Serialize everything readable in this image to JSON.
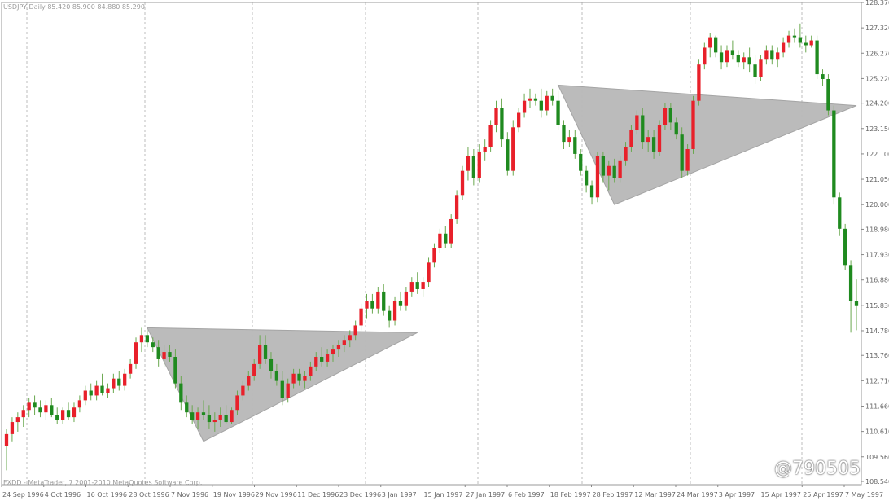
{
  "header": {
    "symbol_line": "USDJPY,Daily",
    "ohlc_line": "85.420 85.900 84.880 85.290"
  },
  "footer": {
    "copyright": "FXDD - MetaTrader, 7 2001-2010 MetaQuotes Software Corp."
  },
  "watermark": "@790505",
  "colors": {
    "bull": "#e8202a",
    "bear": "#1f8a1f",
    "wick": "#6aa84f",
    "triangle_fill": "#b8b8b8",
    "grid": "#bdbdbd",
    "axis_text": "#666666"
  },
  "chart_data": {
    "type": "candlestick",
    "title": "",
    "ylim": [
      108.54,
      128.37
    ],
    "y_ticks": [
      "128.370",
      "127.320",
      "126.270",
      "125.220",
      "124.200",
      "123.150",
      "122.100",
      "121.050",
      "120.000",
      "118.980",
      "117.930",
      "116.880",
      "115.830",
      "114.780",
      "113.760",
      "112.710",
      "111.660",
      "110.610",
      "109.560",
      "108.540"
    ],
    "x_ticks": [
      "24 Sep 1996",
      "4 Oct 1996",
      "16 Oct 1996",
      "28 Oct 1996",
      "7 Nov 1996",
      "19 Nov 1996",
      "29 Nov 1996",
      "11 Dec 1996",
      "23 Dec 1996",
      "3 Jan 1997",
      "15 Jan 1997",
      "27 Jan 1997",
      "6 Feb 1997",
      "18 Feb 1997",
      "28 Feb 1997",
      "12 Mar 1997",
      "24 Mar 1997",
      "3 Apr 1997",
      "15 Apr 1997",
      "25 Apr 1997",
      "7 May 1997"
    ],
    "grid_tick_indices": [
      3,
      6,
      9,
      12,
      15,
      17
    ],
    "candles": [
      {
        "o": 110.0,
        "h": 110.7,
        "l": 109.0,
        "c": 110.5
      },
      {
        "o": 110.5,
        "h": 111.2,
        "l": 110.2,
        "c": 111.0
      },
      {
        "o": 111.0,
        "h": 111.4,
        "l": 110.6,
        "c": 111.2
      },
      {
        "o": 111.2,
        "h": 111.7,
        "l": 110.8,
        "c": 111.5
      },
      {
        "o": 111.5,
        "h": 112.0,
        "l": 111.2,
        "c": 111.8
      },
      {
        "o": 111.8,
        "h": 112.1,
        "l": 111.3,
        "c": 111.6
      },
      {
        "o": 111.6,
        "h": 111.9,
        "l": 111.2,
        "c": 111.4
      },
      {
        "o": 111.4,
        "h": 111.9,
        "l": 111.1,
        "c": 111.7
      },
      {
        "o": 111.7,
        "h": 112.0,
        "l": 111.2,
        "c": 111.3
      },
      {
        "o": 111.3,
        "h": 111.6,
        "l": 110.9,
        "c": 111.1
      },
      {
        "o": 111.1,
        "h": 111.6,
        "l": 110.9,
        "c": 111.5
      },
      {
        "o": 111.5,
        "h": 111.8,
        "l": 111.1,
        "c": 111.2
      },
      {
        "o": 111.2,
        "h": 111.8,
        "l": 111.0,
        "c": 111.6
      },
      {
        "o": 111.6,
        "h": 112.1,
        "l": 111.4,
        "c": 111.9
      },
      {
        "o": 111.9,
        "h": 112.5,
        "l": 111.7,
        "c": 112.3
      },
      {
        "o": 112.3,
        "h": 112.6,
        "l": 111.9,
        "c": 112.1
      },
      {
        "o": 112.1,
        "h": 112.7,
        "l": 111.9,
        "c": 112.5
      },
      {
        "o": 112.5,
        "h": 113.0,
        "l": 112.1,
        "c": 112.2
      },
      {
        "o": 112.2,
        "h": 112.6,
        "l": 112.0,
        "c": 112.4
      },
      {
        "o": 112.4,
        "h": 113.0,
        "l": 112.2,
        "c": 112.8
      },
      {
        "o": 112.8,
        "h": 113.1,
        "l": 112.3,
        "c": 112.5
      },
      {
        "o": 112.5,
        "h": 113.2,
        "l": 112.3,
        "c": 113.0
      },
      {
        "o": 113.0,
        "h": 113.6,
        "l": 112.8,
        "c": 113.4
      },
      {
        "o": 113.4,
        "h": 114.5,
        "l": 113.2,
        "c": 114.3
      },
      {
        "o": 114.3,
        "h": 114.9,
        "l": 113.9,
        "c": 114.6
      },
      {
        "o": 114.6,
        "h": 114.8,
        "l": 114.1,
        "c": 114.3
      },
      {
        "o": 114.3,
        "h": 114.5,
        "l": 113.9,
        "c": 114.1
      },
      {
        "o": 114.1,
        "h": 114.4,
        "l": 113.3,
        "c": 113.6
      },
      {
        "o": 113.6,
        "h": 114.2,
        "l": 113.3,
        "c": 113.9
      },
      {
        "o": 113.9,
        "h": 114.2,
        "l": 113.5,
        "c": 113.7
      },
      {
        "o": 113.7,
        "h": 114.0,
        "l": 112.4,
        "c": 112.6
      },
      {
        "o": 112.6,
        "h": 112.9,
        "l": 111.5,
        "c": 111.8
      },
      {
        "o": 111.8,
        "h": 112.1,
        "l": 111.2,
        "c": 111.4
      },
      {
        "o": 111.4,
        "h": 111.7,
        "l": 110.9,
        "c": 111.1
      },
      {
        "o": 111.1,
        "h": 111.6,
        "l": 110.7,
        "c": 111.4
      },
      {
        "o": 111.4,
        "h": 111.9,
        "l": 111.1,
        "c": 111.3
      },
      {
        "o": 111.3,
        "h": 111.7,
        "l": 110.7,
        "c": 111.0
      },
      {
        "o": 111.0,
        "h": 111.4,
        "l": 110.6,
        "c": 111.1
      },
      {
        "o": 111.1,
        "h": 111.6,
        "l": 110.8,
        "c": 111.3
      },
      {
        "o": 111.3,
        "h": 111.7,
        "l": 110.9,
        "c": 111.0
      },
      {
        "o": 111.0,
        "h": 111.6,
        "l": 110.9,
        "c": 111.5
      },
      {
        "o": 111.5,
        "h": 112.3,
        "l": 111.3,
        "c": 112.1
      },
      {
        "o": 112.1,
        "h": 112.7,
        "l": 111.9,
        "c": 112.5
      },
      {
        "o": 112.5,
        "h": 113.1,
        "l": 112.3,
        "c": 112.9
      },
      {
        "o": 112.9,
        "h": 113.6,
        "l": 112.7,
        "c": 113.4
      },
      {
        "o": 113.4,
        "h": 114.6,
        "l": 113.2,
        "c": 114.2
      },
      {
        "o": 114.2,
        "h": 114.6,
        "l": 113.4,
        "c": 113.6
      },
      {
        "o": 113.6,
        "h": 113.9,
        "l": 112.8,
        "c": 113.1
      },
      {
        "o": 113.1,
        "h": 113.4,
        "l": 112.5,
        "c": 112.7
      },
      {
        "o": 112.7,
        "h": 113.1,
        "l": 111.7,
        "c": 112.0
      },
      {
        "o": 112.0,
        "h": 112.8,
        "l": 111.8,
        "c": 112.6
      },
      {
        "o": 112.6,
        "h": 113.2,
        "l": 112.4,
        "c": 113.0
      },
      {
        "o": 113.0,
        "h": 113.2,
        "l": 112.5,
        "c": 112.7
      },
      {
        "o": 112.7,
        "h": 113.1,
        "l": 112.4,
        "c": 112.9
      },
      {
        "o": 112.9,
        "h": 113.5,
        "l": 112.7,
        "c": 113.3
      },
      {
        "o": 113.3,
        "h": 113.9,
        "l": 113.1,
        "c": 113.7
      },
      {
        "o": 113.7,
        "h": 114.1,
        "l": 113.3,
        "c": 113.5
      },
      {
        "o": 113.5,
        "h": 114.0,
        "l": 113.3,
        "c": 113.8
      },
      {
        "o": 113.8,
        "h": 114.2,
        "l": 113.5,
        "c": 114.0
      },
      {
        "o": 114.0,
        "h": 114.4,
        "l": 113.7,
        "c": 114.2
      },
      {
        "o": 114.2,
        "h": 114.6,
        "l": 113.9,
        "c": 114.4
      },
      {
        "o": 114.4,
        "h": 114.8,
        "l": 114.1,
        "c": 114.6
      },
      {
        "o": 114.6,
        "h": 115.2,
        "l": 114.4,
        "c": 115.0
      },
      {
        "o": 115.0,
        "h": 115.9,
        "l": 114.8,
        "c": 115.7
      },
      {
        "o": 115.7,
        "h": 116.3,
        "l": 115.3,
        "c": 116.0
      },
      {
        "o": 116.0,
        "h": 116.3,
        "l": 115.5,
        "c": 115.7
      },
      {
        "o": 115.7,
        "h": 116.6,
        "l": 115.5,
        "c": 116.4
      },
      {
        "o": 116.4,
        "h": 116.7,
        "l": 115.4,
        "c": 115.6
      },
      {
        "o": 115.6,
        "h": 115.8,
        "l": 114.9,
        "c": 115.2
      },
      {
        "o": 115.2,
        "h": 116.2,
        "l": 115.0,
        "c": 116.0
      },
      {
        "o": 116.0,
        "h": 116.4,
        "l": 115.6,
        "c": 115.8
      },
      {
        "o": 115.8,
        "h": 116.6,
        "l": 115.6,
        "c": 116.4
      },
      {
        "o": 116.4,
        "h": 117.0,
        "l": 116.2,
        "c": 116.8
      },
      {
        "o": 116.8,
        "h": 117.2,
        "l": 116.3,
        "c": 116.5
      },
      {
        "o": 116.5,
        "h": 117.0,
        "l": 116.2,
        "c": 116.8
      },
      {
        "o": 116.8,
        "h": 117.8,
        "l": 116.6,
        "c": 117.6
      },
      {
        "o": 117.6,
        "h": 118.4,
        "l": 117.4,
        "c": 118.2
      },
      {
        "o": 118.2,
        "h": 119.0,
        "l": 118.0,
        "c": 118.8
      },
      {
        "o": 118.8,
        "h": 119.1,
        "l": 118.2,
        "c": 118.4
      },
      {
        "o": 118.4,
        "h": 119.6,
        "l": 118.2,
        "c": 119.4
      },
      {
        "o": 119.4,
        "h": 120.6,
        "l": 119.2,
        "c": 120.4
      },
      {
        "o": 120.4,
        "h": 121.6,
        "l": 120.2,
        "c": 121.4
      },
      {
        "o": 121.4,
        "h": 122.4,
        "l": 121.0,
        "c": 122.0
      },
      {
        "o": 122.0,
        "h": 122.3,
        "l": 120.8,
        "c": 121.1
      },
      {
        "o": 121.1,
        "h": 122.5,
        "l": 120.9,
        "c": 122.2
      },
      {
        "o": 122.2,
        "h": 122.7,
        "l": 121.8,
        "c": 122.4
      },
      {
        "o": 122.4,
        "h": 123.5,
        "l": 122.2,
        "c": 123.3
      },
      {
        "o": 123.3,
        "h": 124.3,
        "l": 123.0,
        "c": 124.0
      },
      {
        "o": 124.0,
        "h": 124.4,
        "l": 122.4,
        "c": 122.7
      },
      {
        "o": 122.7,
        "h": 123.0,
        "l": 121.2,
        "c": 121.4
      },
      {
        "o": 121.4,
        "h": 123.5,
        "l": 121.2,
        "c": 123.2
      },
      {
        "o": 123.2,
        "h": 124.0,
        "l": 123.0,
        "c": 123.8
      },
      {
        "o": 123.8,
        "h": 124.6,
        "l": 123.6,
        "c": 124.3
      },
      {
        "o": 124.3,
        "h": 124.8,
        "l": 124.0,
        "c": 124.4
      },
      {
        "o": 124.4,
        "h": 124.6,
        "l": 124.1,
        "c": 124.3
      },
      {
        "o": 124.3,
        "h": 124.8,
        "l": 123.6,
        "c": 123.9
      },
      {
        "o": 123.9,
        "h": 124.7,
        "l": 123.7,
        "c": 124.5
      },
      {
        "o": 124.5,
        "h": 124.8,
        "l": 124.1,
        "c": 124.3
      },
      {
        "o": 124.3,
        "h": 124.7,
        "l": 123.1,
        "c": 123.3
      },
      {
        "o": 123.3,
        "h": 123.5,
        "l": 122.3,
        "c": 122.6
      },
      {
        "o": 122.6,
        "h": 123.1,
        "l": 122.4,
        "c": 122.8
      },
      {
        "o": 122.8,
        "h": 123.1,
        "l": 121.9,
        "c": 122.1
      },
      {
        "o": 122.1,
        "h": 122.3,
        "l": 121.2,
        "c": 121.4
      },
      {
        "o": 121.4,
        "h": 121.6,
        "l": 120.5,
        "c": 120.8
      },
      {
        "o": 120.8,
        "h": 121.0,
        "l": 120.0,
        "c": 120.3
      },
      {
        "o": 120.3,
        "h": 122.2,
        "l": 120.1,
        "c": 122.0
      },
      {
        "o": 122.0,
        "h": 122.2,
        "l": 120.9,
        "c": 121.2
      },
      {
        "o": 121.2,
        "h": 121.8,
        "l": 120.6,
        "c": 121.6
      },
      {
        "o": 121.6,
        "h": 121.9,
        "l": 120.9,
        "c": 121.1
      },
      {
        "o": 121.1,
        "h": 122.0,
        "l": 120.9,
        "c": 121.8
      },
      {
        "o": 121.8,
        "h": 122.6,
        "l": 121.6,
        "c": 122.4
      },
      {
        "o": 122.4,
        "h": 123.3,
        "l": 122.2,
        "c": 123.1
      },
      {
        "o": 123.1,
        "h": 123.9,
        "l": 122.9,
        "c": 123.7
      },
      {
        "o": 123.7,
        "h": 124.0,
        "l": 122.3,
        "c": 122.6
      },
      {
        "o": 122.6,
        "h": 123.1,
        "l": 122.2,
        "c": 122.8
      },
      {
        "o": 122.8,
        "h": 123.1,
        "l": 121.9,
        "c": 122.2
      },
      {
        "o": 122.2,
        "h": 123.5,
        "l": 122.0,
        "c": 123.3
      },
      {
        "o": 123.3,
        "h": 124.2,
        "l": 123.1,
        "c": 124.0
      },
      {
        "o": 124.0,
        "h": 124.2,
        "l": 123.1,
        "c": 123.4
      },
      {
        "o": 123.4,
        "h": 123.6,
        "l": 122.7,
        "c": 122.9
      },
      {
        "o": 122.9,
        "h": 123.2,
        "l": 121.1,
        "c": 121.4
      },
      {
        "o": 121.4,
        "h": 122.5,
        "l": 121.2,
        "c": 122.3
      },
      {
        "o": 122.3,
        "h": 124.5,
        "l": 122.1,
        "c": 124.3
      },
      {
        "o": 124.3,
        "h": 126.0,
        "l": 124.1,
        "c": 125.8
      },
      {
        "o": 125.8,
        "h": 126.7,
        "l": 125.6,
        "c": 126.5
      },
      {
        "o": 126.5,
        "h": 127.1,
        "l": 126.1,
        "c": 126.9
      },
      {
        "o": 126.9,
        "h": 127.0,
        "l": 126.1,
        "c": 126.3
      },
      {
        "o": 126.3,
        "h": 126.6,
        "l": 125.6,
        "c": 125.9
      },
      {
        "o": 125.9,
        "h": 126.6,
        "l": 125.7,
        "c": 126.4
      },
      {
        "o": 126.4,
        "h": 126.8,
        "l": 126.0,
        "c": 126.2
      },
      {
        "o": 126.2,
        "h": 126.4,
        "l": 125.7,
        "c": 125.9
      },
      {
        "o": 125.9,
        "h": 126.3,
        "l": 125.6,
        "c": 126.1
      },
      {
        "o": 126.1,
        "h": 126.5,
        "l": 125.5,
        "c": 125.8
      },
      {
        "o": 125.8,
        "h": 126.2,
        "l": 125.0,
        "c": 125.3
      },
      {
        "o": 125.3,
        "h": 126.2,
        "l": 125.1,
        "c": 126.0
      },
      {
        "o": 126.0,
        "h": 126.6,
        "l": 125.8,
        "c": 126.4
      },
      {
        "o": 126.4,
        "h": 126.6,
        "l": 125.8,
        "c": 126.0
      },
      {
        "o": 126.0,
        "h": 126.5,
        "l": 125.7,
        "c": 126.3
      },
      {
        "o": 126.3,
        "h": 126.9,
        "l": 126.1,
        "c": 126.7
      },
      {
        "o": 126.7,
        "h": 127.2,
        "l": 126.5,
        "c": 127.0
      },
      {
        "o": 127.0,
        "h": 127.3,
        "l": 126.7,
        "c": 126.9
      },
      {
        "o": 126.9,
        "h": 127.5,
        "l": 126.5,
        "c": 126.7
      },
      {
        "o": 126.7,
        "h": 127.0,
        "l": 126.3,
        "c": 126.6
      },
      {
        "o": 126.6,
        "h": 127.0,
        "l": 126.5,
        "c": 126.8
      },
      {
        "o": 126.8,
        "h": 127.0,
        "l": 125.2,
        "c": 125.4
      },
      {
        "o": 125.4,
        "h": 125.6,
        "l": 124.9,
        "c": 125.2
      },
      {
        "o": 125.2,
        "h": 125.4,
        "l": 123.7,
        "c": 123.9
      },
      {
        "o": 123.9,
        "h": 124.1,
        "l": 120.0,
        "c": 120.3
      },
      {
        "o": 120.3,
        "h": 120.5,
        "l": 118.7,
        "c": 119.0
      },
      {
        "o": 119.0,
        "h": 119.2,
        "l": 117.3,
        "c": 117.5
      },
      {
        "o": 117.5,
        "h": 117.7,
        "l": 114.7,
        "c": 116.0
      },
      {
        "o": 116.0,
        "h": 116.9,
        "l": 114.8,
        "c": 115.8
      }
    ],
    "triangles": [
      {
        "points": [
          [
            25,
            114.9
          ],
          [
            35,
            110.2
          ],
          [
            73,
            114.7
          ]
        ]
      },
      {
        "points": [
          [
            98,
            124.95
          ],
          [
            108,
            120.0
          ],
          [
            151,
            124.1
          ]
        ]
      }
    ]
  }
}
